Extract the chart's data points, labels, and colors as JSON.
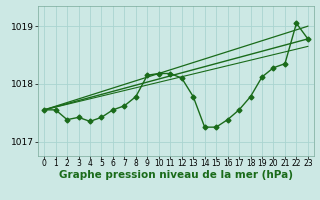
{
  "bg_color": "#cce8e4",
  "line_color": "#1a6b1a",
  "grid_color": "#aad4d0",
  "xlabel": "Graphe pression niveau de la mer (hPa)",
  "xlabel_fontsize": 7.5,
  "ylim": [
    1016.75,
    1019.35
  ],
  "xlim": [
    -0.5,
    23.5
  ],
  "yticks": [
    1017,
    1018,
    1019
  ],
  "xticks": [
    0,
    1,
    2,
    3,
    4,
    5,
    6,
    7,
    8,
    9,
    10,
    11,
    12,
    13,
    14,
    15,
    16,
    17,
    18,
    19,
    20,
    21,
    22,
    23
  ],
  "series": [
    {
      "x": [
        0,
        1,
        2,
        3,
        4,
        5,
        6,
        7,
        8,
        9,
        10,
        11,
        12,
        13,
        14,
        15,
        16,
        17,
        18,
        19,
        20,
        21,
        22,
        23
      ],
      "y": [
        1017.55,
        1017.55,
        1017.38,
        1017.42,
        1017.35,
        1017.42,
        1017.55,
        1017.62,
        1017.78,
        1018.15,
        1018.18,
        1018.18,
        1018.1,
        1017.78,
        1017.25,
        1017.25,
        1017.38,
        1017.55,
        1017.78,
        1018.12,
        1018.28,
        1018.35,
        1019.05,
        1018.78
      ],
      "marker": "D",
      "marker_size": 2.5,
      "linewidth": 1.0
    },
    {
      "x": [
        0,
        23
      ],
      "y": [
        1017.55,
        1018.78
      ],
      "linewidth": 1.0
    },
    {
      "x": [
        0,
        23
      ],
      "y": [
        1017.55,
        1019.0
      ],
      "linewidth": 0.9
    },
    {
      "x": [
        0,
        23
      ],
      "y": [
        1017.55,
        1018.65
      ],
      "linewidth": 0.8
    }
  ]
}
